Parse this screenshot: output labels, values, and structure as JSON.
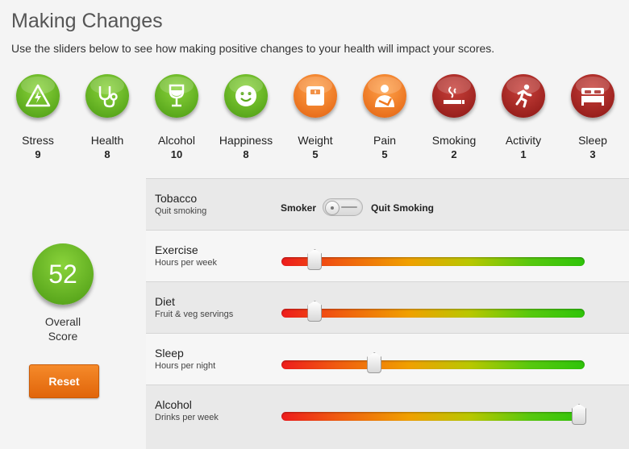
{
  "header": {
    "title": "Making Changes",
    "subtitle": "Use the sliders below to see how making positive changes to your health will impact your scores."
  },
  "metrics": [
    {
      "label": "Stress",
      "value": "9",
      "icon": "warning-triangle-icon",
      "color": "#5aa81a"
    },
    {
      "label": "Health",
      "value": "8",
      "icon": "stethoscope-icon",
      "color": "#5aa81a"
    },
    {
      "label": "Alcohol",
      "value": "10",
      "icon": "wine-glass-icon",
      "color": "#5aa81a"
    },
    {
      "label": "Happiness",
      "value": "8",
      "icon": "smiley-face-icon",
      "color": "#5aa81a"
    },
    {
      "label": "Weight",
      "value": "5",
      "icon": "scale-icon",
      "color": "#f07a20"
    },
    {
      "label": "Pain",
      "value": "5",
      "icon": "arm-sling-icon",
      "color": "#f07a20"
    },
    {
      "label": "Smoking",
      "value": "2",
      "icon": "cigarette-icon",
      "color": "#a52420"
    },
    {
      "label": "Activity",
      "value": "1",
      "icon": "running-person-icon",
      "color": "#a52420"
    },
    {
      "label": "Sleep",
      "value": "3",
      "icon": "bed-icon",
      "color": "#a52420"
    }
  ],
  "overall": {
    "score": "52",
    "label_line1": "Overall",
    "label_line2": "Score",
    "reset_label": "Reset"
  },
  "controls": {
    "tobacco": {
      "title": "Tobacco",
      "subtitle": "Quit smoking",
      "off_label": "Smoker",
      "on_label": "Quit Smoking",
      "state": "Smoker"
    },
    "sliders": [
      {
        "title": "Exercise",
        "subtitle": "Hours per week",
        "level": 0.09
      },
      {
        "title": "Diet",
        "subtitle": "Fruit & veg servings",
        "level": 0.09
      },
      {
        "title": "Sleep",
        "subtitle": "Hours per night",
        "level": 0.295
      },
      {
        "title": "Alcohol",
        "subtitle": "Drinks per week",
        "level": 1.0
      }
    ]
  }
}
